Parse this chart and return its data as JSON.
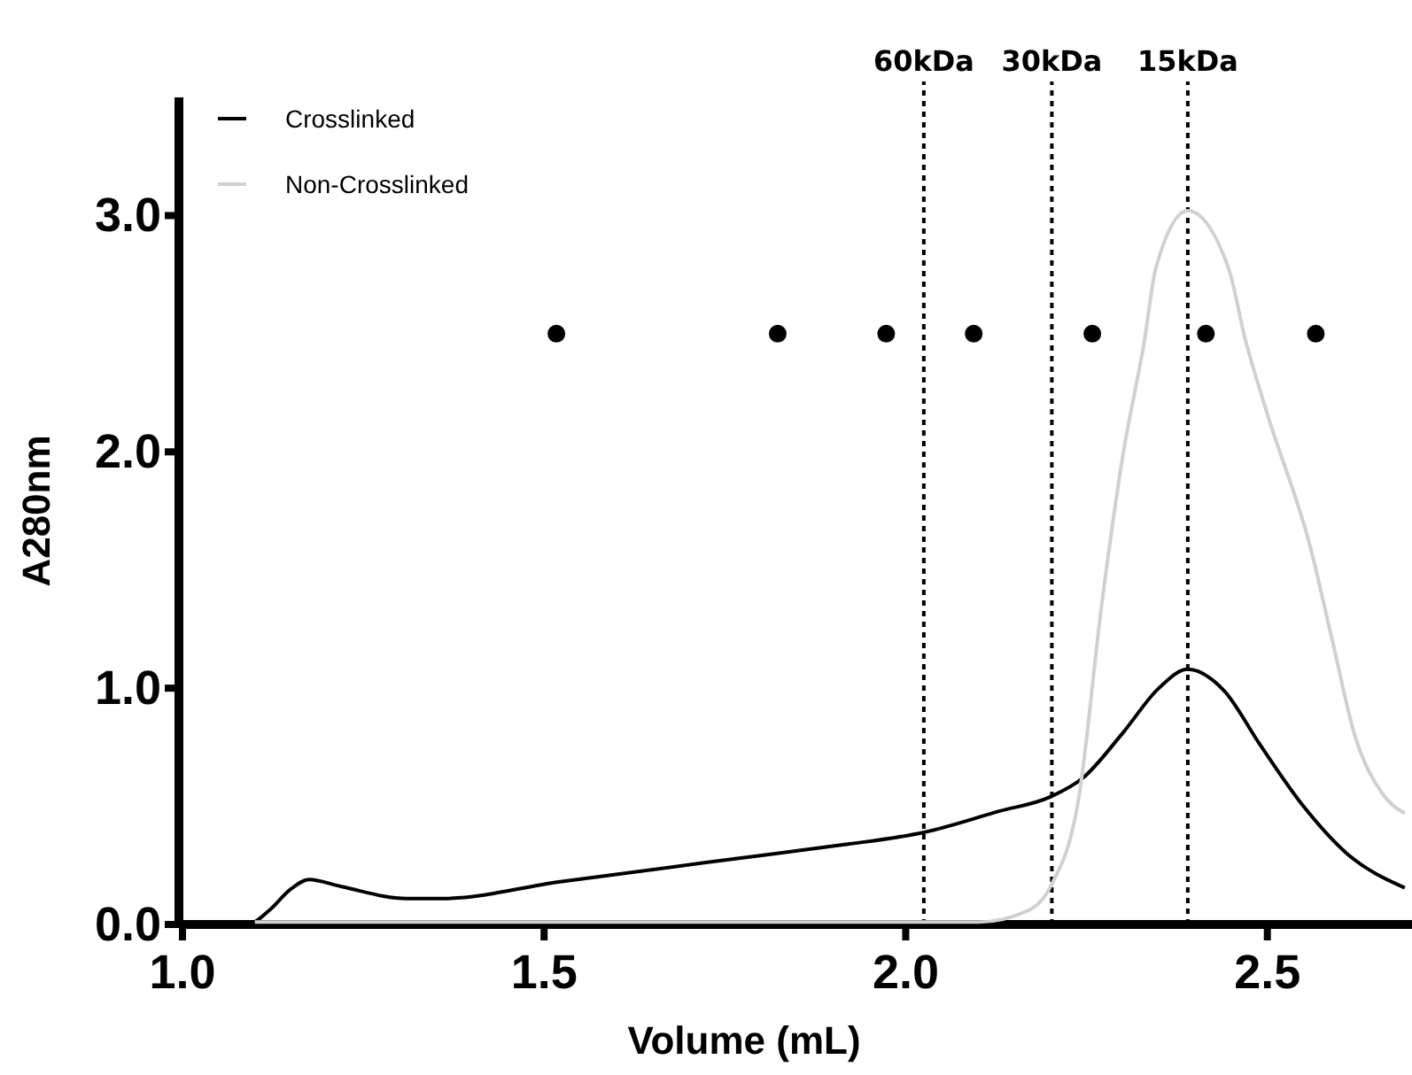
{
  "chart_data": {
    "type": "line",
    "xlabel": "Volume (mL)",
    "ylabel": "A280nm",
    "xlim": [
      1.0,
      2.7
    ],
    "ylim": [
      0,
      3.5
    ],
    "xticks": [
      {
        "value": 1,
        "label": "1.0"
      },
      1.5,
      {
        "value": 2,
        "label": "2.0"
      },
      2.5
    ],
    "yticks": [
      {
        "value": 0,
        "label": "0.0"
      },
      {
        "value": 1,
        "label": "1.0"
      },
      {
        "value": 2,
        "label": "2.0"
      },
      {
        "value": 3,
        "label": "3.0"
      }
    ],
    "grid": false,
    "legend": "top left",
    "marker": "none",
    "line_style": "solid",
    "series": [
      {
        "name": "Crosslinked",
        "color": "#000000",
        "x": [
          1.0,
          1.09,
          1.12,
          1.15,
          1.175,
          1.22,
          1.31,
          1.36,
          1.52,
          1.82,
          1.92,
          1.99,
          2.025,
          2.13,
          2.2,
          2.245,
          2.3,
          2.35,
          2.39,
          2.44,
          2.49,
          2.55,
          2.61,
          2.69
        ],
        "values": [
          0,
          0,
          0.06,
          0.15,
          0.19,
          0.16,
          0.11,
          0.11,
          0.18,
          0.3,
          0.34,
          0.37,
          0.39,
          0.48,
          0.54,
          0.62,
          0.81,
          1.0,
          1.08,
          0.99,
          0.76,
          0.5,
          0.3,
          0.155
        ]
      },
      {
        "name": "Non-Crosslinked",
        "color": "#d0d0d0",
        "x": [
          1.1,
          1.88,
          2.1,
          2.17,
          2.2,
          2.24,
          2.27,
          2.3,
          2.33,
          2.346,
          2.39,
          2.446,
          2.47,
          2.5,
          2.56,
          2.59,
          2.62,
          2.66,
          2.69
        ],
        "values": [
          0.01,
          0.01,
          0.01,
          0.06,
          0.16,
          0.55,
          1.33,
          1.98,
          2.47,
          2.78,
          3.02,
          2.78,
          2.47,
          2.16,
          1.59,
          1.2,
          0.81,
          0.55,
          0.47
        ]
      },
      {
        "type": "scatter",
        "color": "#000000",
        "marker": "circle",
        "x": [
          1.517,
          1.823,
          1.973,
          2.094,
          2.258,
          2.415,
          2.567
        ],
        "values": [
          2.5,
          2.5,
          2.5,
          2.5,
          2.5,
          2.5,
          2.5
        ]
      }
    ],
    "ref_lines": [
      {
        "axis": "x",
        "value": 2.025,
        "label": "60kDa",
        "line_style": "dotted"
      },
      {
        "axis": "x",
        "value": 2.202,
        "label": "30kDa",
        "line_style": "dotted"
      },
      {
        "axis": "x",
        "value": 2.39,
        "label": "15kDa",
        "line_style": "dotted"
      }
    ]
  }
}
